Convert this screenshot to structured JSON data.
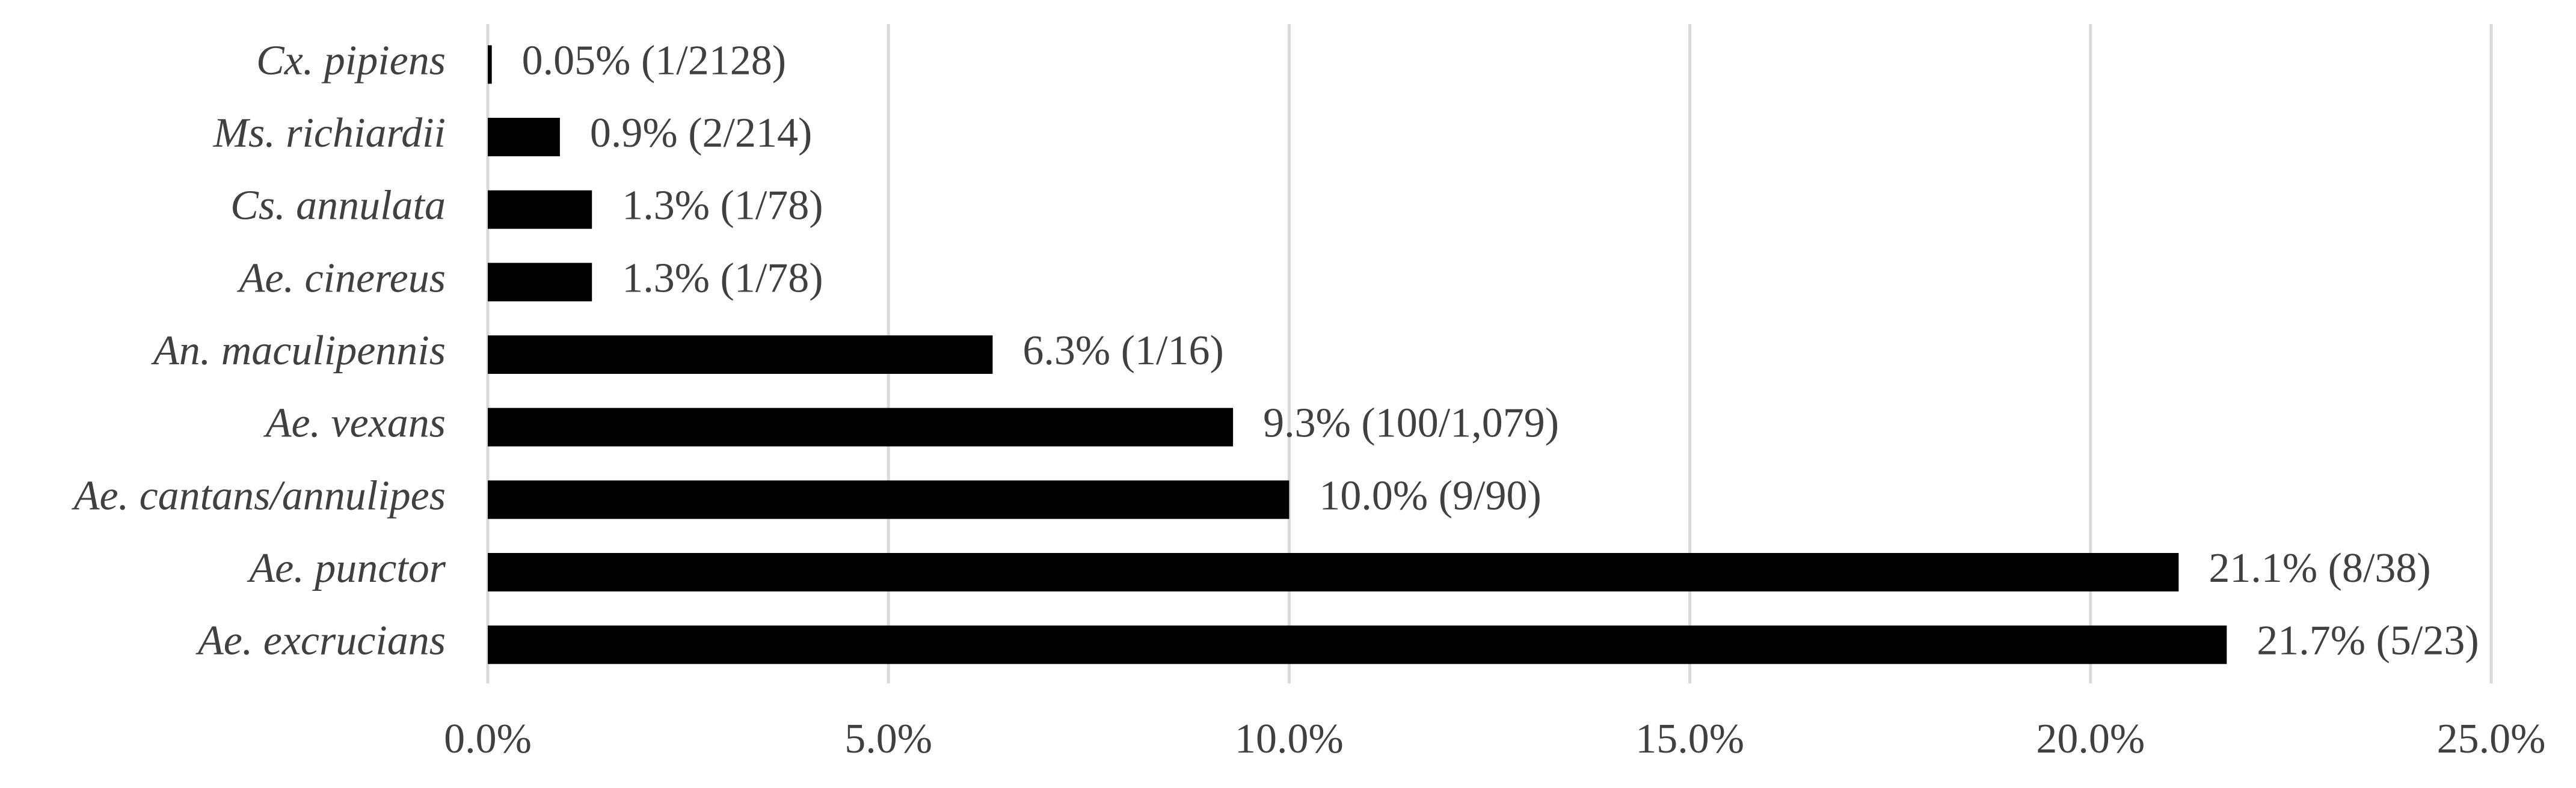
{
  "chart_data": {
    "type": "hbar",
    "categories": [
      "Cx. pipiens",
      "Ms. richiardii",
      "Cs. annulata",
      "Ae. cinereus",
      "An. maculipennis",
      "Ae. vexans",
      "Ae. cantans/annulipes",
      "Ae. punctor",
      "Ae. excrucians"
    ],
    "values": [
      0.05,
      0.9,
      1.3,
      1.3,
      6.3,
      9.3,
      10.0,
      21.1,
      21.7
    ],
    "value_labels": [
      "0.05% (1/2128)",
      "0.9% (2/214)",
      "1.3% (1/78)",
      "1.3% (1/78)",
      "6.3% (1/16)",
      "9.3% (100/1,079)",
      "10.0% (9/90)",
      "21.1% (8/38)",
      "21.7% (5/23)"
    ],
    "color": "#000000",
    "xlim": [
      0,
      25
    ],
    "xticks": [
      {
        "value": 0,
        "label": "0.0%"
      },
      {
        "value": 5,
        "label": "5.0%"
      },
      {
        "value": 10,
        "label": "10.0%"
      },
      {
        "value": 15,
        "label": "15.0%"
      },
      {
        "value": 20,
        "label": "20.0%"
      },
      {
        "value": 25,
        "label": "25.0%"
      }
    ],
    "grid": true
  }
}
